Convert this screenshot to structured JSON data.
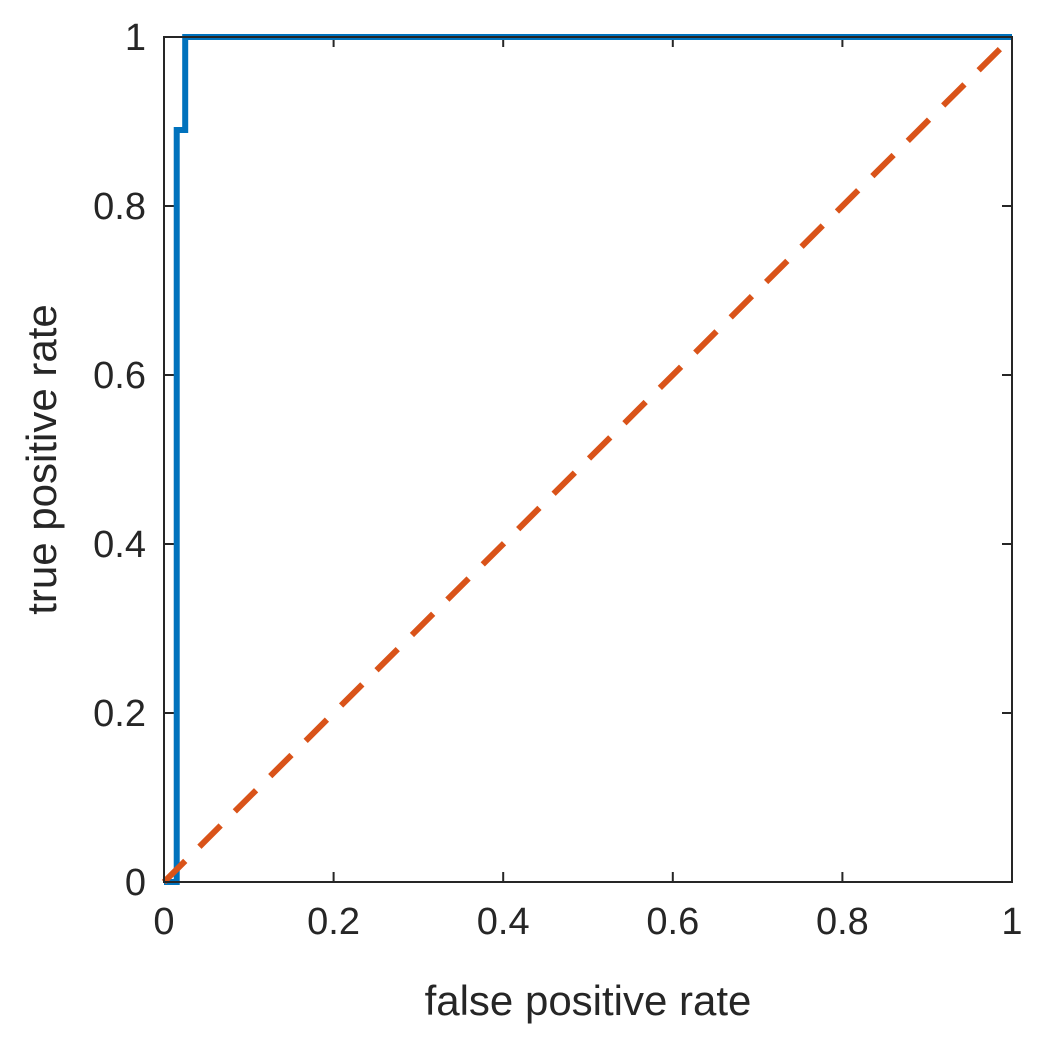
{
  "chart_data": {
    "type": "line",
    "title": "",
    "xlabel": "false positive rate",
    "ylabel": "true positive rate",
    "xlim": [
      0,
      1
    ],
    "ylim": [
      0,
      1
    ],
    "x_ticks": [
      "0",
      "0.2",
      "0.4",
      "0.6",
      "0.8",
      "1"
    ],
    "y_ticks": [
      "0",
      "0.2",
      "0.4",
      "0.6",
      "0.8",
      "1"
    ],
    "grid": false,
    "legend": "none",
    "series": [
      {
        "style": "solid",
        "color": "#0072BD",
        "x": [
          0,
          0.015,
          0.015,
          0.025,
          0.025,
          1
        ],
        "y": [
          0,
          0,
          0.89,
          0.89,
          1,
          1
        ]
      },
      {
        "style": "dashed",
        "color": "#D95319",
        "x": [
          0,
          1
        ],
        "y": [
          0,
          1
        ]
      }
    ]
  }
}
